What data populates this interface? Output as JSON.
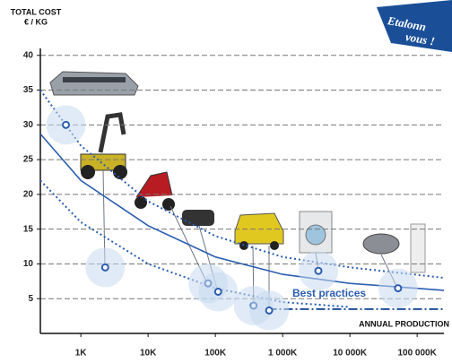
{
  "chart_data": {
    "type": "scatter",
    "y_label_line1": "TOTAL COST",
    "y_label_line2": "€ / KG",
    "x_label": "ANNUAL PRODUCTION",
    "annotation": "Best practices",
    "badge_line1": "Etalonn",
    "badge_line2": "vous !",
    "log_x": true,
    "grid": true,
    "xlim": [
      250,
      250000000
    ],
    "ylim": [
      0,
      41
    ],
    "xticks": [
      {
        "value": 1000,
        "label": "1K"
      },
      {
        "value": 10000,
        "label": "10K"
      },
      {
        "value": 100000,
        "label": "100K"
      },
      {
        "value": 1000000,
        "label": "1 000K"
      },
      {
        "value": 10000000,
        "label": "10 000K"
      },
      {
        "value": 100000000,
        "label": "100 000K"
      }
    ],
    "yticks": [
      5,
      10,
      15,
      20,
      25,
      30,
      35,
      40
    ],
    "color": "#2a5db0",
    "x": [
      600,
      2300,
      78000,
      110000,
      370000,
      630000,
      3400000,
      52000000
    ],
    "values": [
      30,
      9.5,
      7.2,
      6,
      4,
      3.3,
      9,
      6.5
    ],
    "curves": [
      {
        "style": "dotted",
        "color": "#2a5db0",
        "x": [
          250,
          1000,
          10000,
          100000,
          1000000,
          10000000,
          250000000
        ],
        "values": [
          35,
          27,
          19,
          14,
          11,
          9.5,
          8
        ]
      },
      {
        "style": "solid",
        "color": "#2a5db0",
        "x": [
          250,
          1000,
          10000,
          100000,
          1000000,
          10000000,
          250000000
        ],
        "values": [
          28.7,
          22,
          15.5,
          11,
          8.5,
          7.2,
          6.2
        ]
      },
      {
        "style": "dotted",
        "color": "#2a5db0",
        "x": [
          250,
          1000,
          10000,
          100000,
          1000000,
          10000000
        ],
        "values": [
          22,
          16,
          10,
          6.5,
          4.5,
          3.8
        ]
      },
      {
        "style": "dashdot",
        "color": "#1f4e9c",
        "x": [
          600000,
          250000000
        ],
        "values": [
          3.5,
          3.5
        ]
      }
    ]
  }
}
